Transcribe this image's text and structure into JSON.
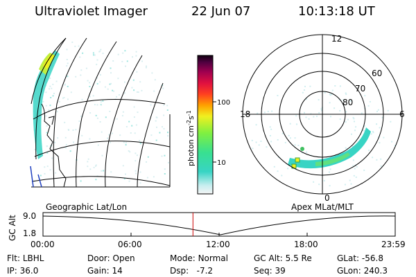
{
  "header": {
    "title": "Ultraviolet Imager",
    "date": "22 Jun 07",
    "time": "10:13:18 UT"
  },
  "colorbar": {
    "unit_label": "photon cm",
    "unit_sup1": "-2",
    "unit_mid": "s",
    "unit_sup2": "-1",
    "ticks": [
      "100",
      "10"
    ]
  },
  "geo_panel": {
    "label": "Geographic Lat/Lon"
  },
  "polar_panel": {
    "label": "Apex MLat/MLT",
    "lat_labels": [
      "80",
      "70",
      "60"
    ],
    "mlt_labels": {
      "top": "12",
      "left": "18",
      "right": "6",
      "bottom": "0"
    }
  },
  "altitude_plot": {
    "ylabel": "GC Alt",
    "yticks": [
      "9.0",
      "1.8"
    ],
    "xticks": [
      "00:00",
      "06:00",
      "12:00",
      "18:00",
      "23:59"
    ],
    "current_time_hours": 10.22
  },
  "info": {
    "filter_label": "Flt:",
    "filter_value": "LBHL",
    "ip_label": "IP:",
    "ip_value": "36.0",
    "door_label": "Door:",
    "door_value": "Open",
    "gain_label": "Gain:",
    "gain_value": "14",
    "mode_label": "Mode:",
    "mode_value": "Normal",
    "dsp_label": "Dsp:",
    "dsp_value": "-7.2",
    "alt_label": "GC Alt:",
    "alt_value": "5.5 Re",
    "seq_label": "Seq:",
    "seq_value": "39",
    "glat_label": "GLat:",
    "glat_value": "-56.8",
    "glon_label": "GLon:",
    "glon_value": "240.3"
  },
  "colors": {
    "spacecraft_track": "#000000",
    "current_time_marker": "#cc0000",
    "aurora_low": "#38d4c4",
    "aurora_high": "#f0f020"
  }
}
